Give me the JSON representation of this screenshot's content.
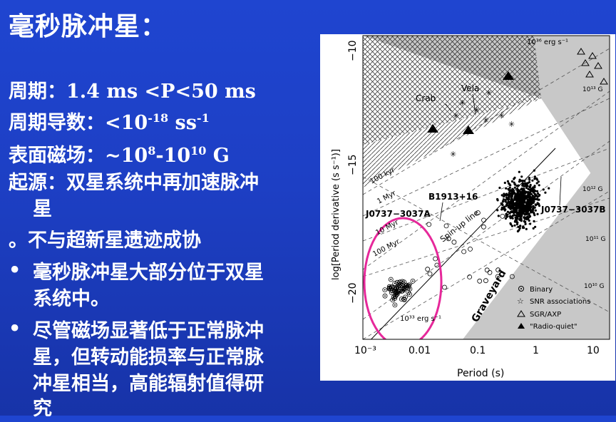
{
  "title": "毫秒脉冲星：",
  "props": {
    "period": {
      "label": "周期：",
      "value": "1.4 ms <P<50 ms"
    },
    "pdot": {
      "label": "周期导数：",
      "pre": "<10",
      "exp1": "-18",
      "unit": " ss",
      "exp2": "-1"
    },
    "field": {
      "label": "表面磁场：",
      "pre": "~10",
      "exp1": "8",
      "mid": "-10",
      "exp2": "10",
      "unit": " G"
    }
  },
  "origin": {
    "line1": "起源：双星系统中再加速脉冲",
    "line2": "星"
  },
  "no_snr": "。不与超新星遗迹成协",
  "bullets": [
    {
      "marker": "•",
      "line1": "毫秒脉冲星大部分位于双星",
      "line2": "系统中。"
    },
    {
      "marker": "•",
      "line1": "尽管磁场显著低于正常脉冲",
      "line2": "星，但转动能损率与正常脉",
      "line3": "冲星相当，高能辐射值得研",
      "line4": "究"
    }
  ],
  "figure": {
    "xlabel": "Period (s)",
    "ylabel": "log[Period derivative (s s⁻¹)]",
    "x_ticks": [
      "10⁻³",
      "0.01",
      "0.1",
      "1",
      "10"
    ],
    "y_ticks": [
      "−10",
      "−15",
      "−20"
    ],
    "age_lines": [
      "100 kyr",
      "1 Myr",
      "10 Myr",
      "100 Myr"
    ],
    "edot_labels": [
      "10³⁶ erg s⁻¹",
      "10³³ erg s⁻¹"
    ],
    "field_labels": [
      "10¹³ G",
      "10¹² G",
      "10¹¹ G",
      "10¹⁰ G"
    ],
    "region_labels": [
      "Graveyard",
      "Spin-up line"
    ],
    "annotations": [
      "Crab",
      "Vela",
      "B1913+16",
      "J0737−3037A",
      "J0737−3037B"
    ],
    "legend": [
      "Binary",
      "SNR associations",
      "SGR/AXP",
      "\"Radio-quiet\""
    ]
  }
}
